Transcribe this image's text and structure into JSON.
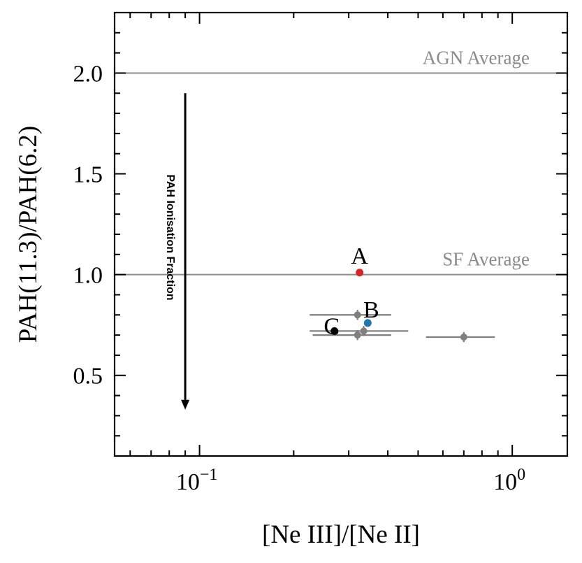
{
  "chart_data": {
    "type": "scatter",
    "xlabel": "[Ne III]/[Ne II]",
    "ylabel": "PAH(11.3)/PAH(6.2)",
    "xscale": "log",
    "xlim": [
      0.0535,
      1.5
    ],
    "ylim": [
      0.1,
      2.3
    ],
    "xticks": [
      {
        "value": 0.1,
        "base": "10",
        "exp": "−1"
      },
      {
        "value": 1.0,
        "base": "10",
        "exp": "0"
      }
    ],
    "yticks": [
      {
        "value": 0.5,
        "label": "0.5"
      },
      {
        "value": 1.0,
        "label": "1.0"
      },
      {
        "value": 1.5,
        "label": "1.5"
      },
      {
        "value": 2.0,
        "label": "2.0"
      }
    ],
    "grid": false,
    "reference_lines": [
      {
        "y": 2.0,
        "label": "AGN Average",
        "color": "#8a8a8a"
      },
      {
        "y": 1.0,
        "label": "SF Average",
        "color": "#8a8a8a"
      }
    ],
    "arrow": {
      "x": 0.09,
      "y_from": 1.9,
      "y_to": 0.33,
      "label": "PAH Ionisation Fraction"
    },
    "errorbar_points": [
      {
        "x": 0.32,
        "y": 0.8,
        "xerr": [
          0.095,
          0.09
        ],
        "yerr": 0.025
      },
      {
        "x": 0.32,
        "y": 0.7,
        "xerr": [
          0.09,
          0.09
        ],
        "yerr": 0.025
      },
      {
        "x": 0.335,
        "y": 0.72,
        "xerr": [
          0.11,
          0.13
        ],
        "yerr": 0.025
      },
      {
        "x": 0.7,
        "y": 0.69,
        "xerr": [
          0.17,
          0.18
        ],
        "yerr": 0.025
      }
    ],
    "error_color": "#7f7f7f",
    "labeled_points": [
      {
        "label": "A",
        "x": 0.325,
        "y": 1.01,
        "color": "#d62728"
      },
      {
        "label": "B",
        "x": 0.345,
        "y": 0.76,
        "color": "#1f77b4"
      },
      {
        "label": "C",
        "x": 0.27,
        "y": 0.72,
        "color": "#000000"
      }
    ]
  }
}
